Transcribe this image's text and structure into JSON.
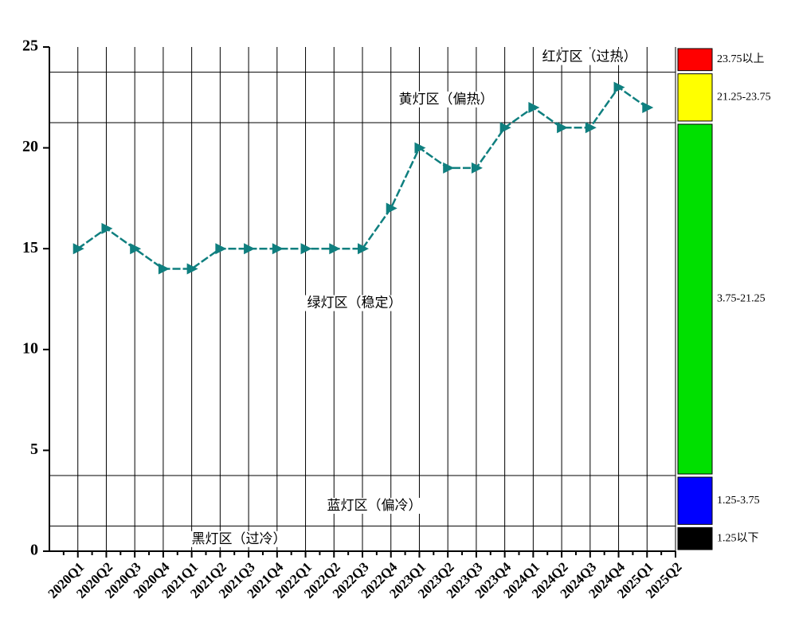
{
  "chart_data": {
    "type": "line",
    "categories": [
      "2020Q1",
      "2020Q2",
      "2020Q3",
      "2020Q4",
      "2021Q1",
      "2021Q2",
      "2021Q3",
      "2021Q4",
      "2022Q1",
      "2022Q2",
      "2022Q3",
      "2022Q4",
      "2023Q1",
      "2023Q2",
      "2023Q3",
      "2023Q4",
      "2024Q1",
      "2024Q2",
      "2024Q3",
      "2024Q4",
      "2025Q1",
      "2025Q2"
    ],
    "series": [
      {
        "color": "#0f7f7f",
        "values": [
          15,
          16,
          15,
          14,
          14,
          15,
          15,
          15,
          15,
          15,
          15,
          17,
          20,
          19,
          19,
          21,
          22,
          21,
          21,
          23,
          22,
          null
        ]
      }
    ],
    "ylim": [
      0,
      25
    ],
    "yticks": [
      0,
      5,
      10,
      15,
      20,
      25
    ],
    "grid": true,
    "zones": [
      {
        "name": "黑灯区（过冷）",
        "range_label": "1.25以下",
        "color": "#000000",
        "from": 0,
        "to": 1.25
      },
      {
        "name": "蓝灯区（偏冷）",
        "range_label": "1.25-3.75",
        "color": "#0000ff",
        "from": 1.25,
        "to": 3.75
      },
      {
        "name": "绿灯区（稳定）",
        "range_label": "3.75-21.25",
        "color": "#00e000",
        "from": 3.75,
        "to": 21.25
      },
      {
        "name": "黄灯区（偏热）",
        "range_label": "21.25-23.75",
        "color": "#ffff00",
        "from": 21.25,
        "to": 23.75
      },
      {
        "name": "红灯区（过热）",
        "range_label": "23.75以上",
        "color": "#ff0000",
        "from": 23.75,
        "to": 25
      }
    ]
  }
}
